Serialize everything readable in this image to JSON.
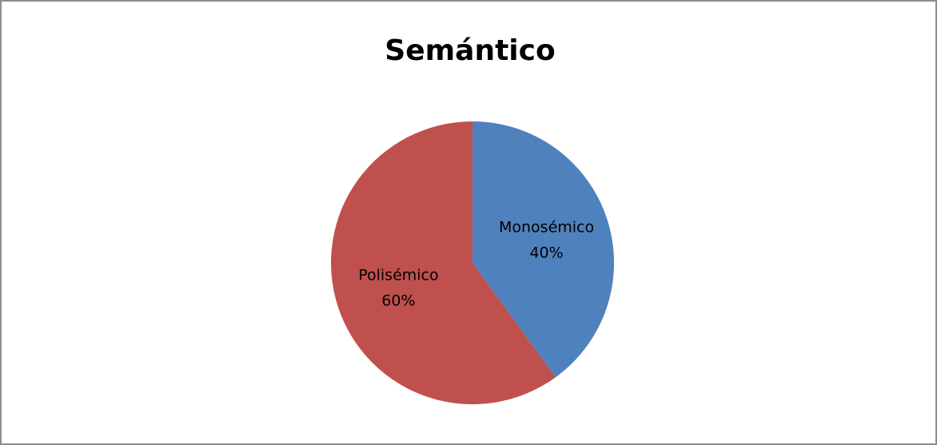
{
  "chart_data": {
    "type": "pie",
    "title": "Semántico",
    "categories": [
      "Monosémico",
      "Polisémico"
    ],
    "values": [
      40,
      60
    ],
    "value_labels": [
      "40%",
      "60%"
    ],
    "colors": [
      "#4f81bd",
      "#c0504d"
    ]
  }
}
